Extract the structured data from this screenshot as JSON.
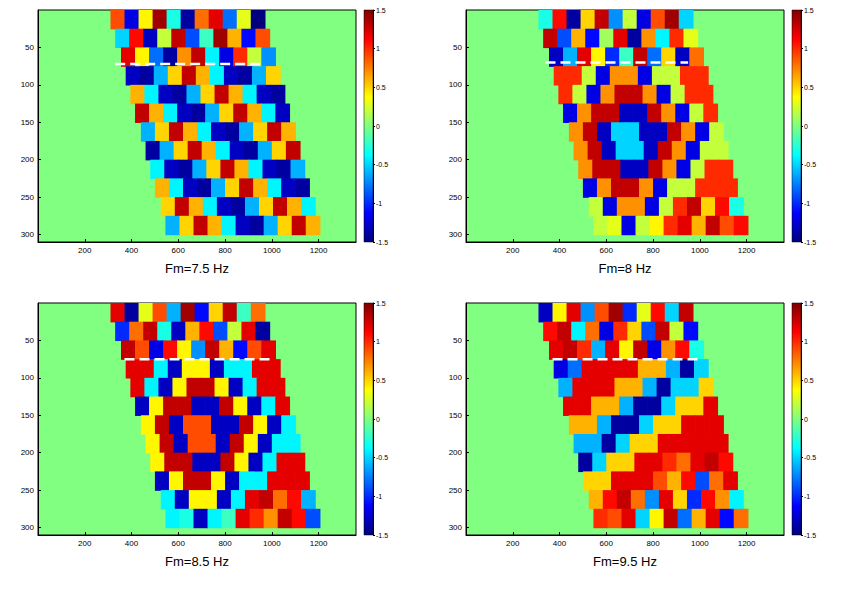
{
  "chart_data": [
    {
      "type": "heatmap",
      "title": "Fm=7.5 Hz",
      "xlim": [
        0,
        1360
      ],
      "ylim": [
        0,
        310
      ],
      "xticks": [
        200,
        400,
        600,
        800,
        1000,
        1200
      ],
      "yticks": [
        50,
        100,
        150,
        200,
        250,
        300
      ],
      "grid": false,
      "cell_width": 60,
      "cell_height": 25,
      "rows": [
        {
          "y": 12.5,
          "x": 340,
          "values": [
            0.9,
            -1.2,
            0.4,
            1.4,
            -0.3,
            -1.4,
            0.8,
            1.2,
            -0.8,
            0.3,
            -1.5
          ]
        },
        {
          "y": 37.5,
          "x": 360,
          "values": [
            -0.5,
            1.1,
            -1.3,
            0.2,
            1.3,
            -0.9,
            -0.2,
            1.4,
            0.6,
            -1.1,
            0.9
          ]
        },
        {
          "y": 62.5,
          "x": 385,
          "values": [
            1.2,
            0.4,
            -0.8,
            -1.4,
            0.7,
            1.3,
            -0.4,
            -1.2,
            1.0,
            0.2,
            -0.7
          ]
        },
        {
          "y": 87.5,
          "x": 405,
          "values": [
            -1.3,
            -1.4,
            -0.6,
            0.5,
            1.3,
            0.6,
            -0.4,
            -1.3,
            -1.4,
            -0.6,
            0.5
          ]
        },
        {
          "y": 112.5,
          "x": 425,
          "values": [
            0.6,
            -0.4,
            -1.3,
            -1.4,
            -0.6,
            0.5,
            1.3,
            0.6,
            -0.4,
            -1.3,
            -1.4
          ]
        },
        {
          "y": 137.5,
          "x": 445,
          "values": [
            1.3,
            0.6,
            -0.4,
            -1.3,
            -1.4,
            -0.6,
            0.5,
            1.3,
            0.6,
            -0.4,
            -1.3
          ]
        },
        {
          "y": 162.5,
          "x": 470,
          "values": [
            -0.6,
            0.5,
            1.3,
            0.6,
            -0.4,
            -1.3,
            -1.4,
            -0.6,
            0.5,
            1.3,
            0.6
          ]
        },
        {
          "y": 187.5,
          "x": 490,
          "values": [
            -1.4,
            -0.6,
            0.5,
            1.3,
            0.6,
            -0.4,
            -1.3,
            -1.4,
            -0.6,
            0.5,
            1.3
          ]
        },
        {
          "y": 212.5,
          "x": 510,
          "values": [
            -0.4,
            -1.3,
            -1.4,
            -0.6,
            0.5,
            1.3,
            0.6,
            -0.4,
            -1.3,
            -1.4,
            -0.6
          ]
        },
        {
          "y": 237.5,
          "x": 530,
          "values": [
            0.6,
            -0.4,
            -1.3,
            -1.4,
            -0.6,
            0.5,
            1.3,
            0.6,
            -0.4,
            -1.3,
            -1.4
          ]
        },
        {
          "y": 262.5,
          "x": 555,
          "values": [
            0.5,
            1.3,
            0.6,
            -0.4,
            -1.3,
            -1.4,
            -0.6,
            0.5,
            1.3,
            0.6,
            -0.4
          ]
        },
        {
          "y": 287.5,
          "x": 575,
          "values": [
            -0.6,
            0.5,
            1.3,
            0.6,
            -0.4,
            -1.3,
            -1.4,
            -0.6,
            0.5,
            1.3,
            0.6
          ]
        }
      ],
      "colorbar": {
        "range": [
          -1.5,
          1.5
        ],
        "ticks": [
          -1.5,
          -1,
          -0.5,
          0,
          0.5,
          1,
          1.5
        ]
      },
      "dashed_line": {
        "x": [
          330,
          960
        ],
        "y": [
          72,
          72
        ]
      },
      "line_style": "dashed"
    },
    {
      "type": "heatmap",
      "title": "Fm=8 Hz",
      "xlim": [
        0,
        1360
      ],
      "ylim": [
        0,
        310
      ],
      "xticks": [
        200,
        400,
        600,
        800,
        1000,
        1200
      ],
      "yticks": [
        50,
        100,
        150,
        200,
        250,
        300
      ],
      "grid": false,
      "cell_width": 60,
      "cell_height": 25,
      "rows": [
        {
          "y": 12.5,
          "x": 340,
          "values": [
            -0.3,
            1.1,
            -1.4,
            0.5,
            1.3,
            -0.7,
            0.2,
            -1.2,
            0.9,
            1.4,
            -0.5
          ]
        },
        {
          "y": 37.5,
          "x": 360,
          "values": [
            1.3,
            -0.9,
            0.6,
            -1.1,
            0.1,
            1.2,
            -1.4,
            0.7,
            -0.4,
            1.0,
            0.3
          ]
        },
        {
          "y": 62.5,
          "x": 385,
          "values": [
            -1.3,
            -0.6,
            1.2,
            0.4,
            -1.0,
            -0.2,
            1.3,
            -0.8,
            0.5,
            -1.3,
            0.8
          ]
        },
        {
          "y": 87.5,
          "x": 405,
          "values": [
            1.0,
            1.0,
            0.2,
            -1.2,
            0.7,
            0.7,
            -1.2,
            0.2,
            0.2,
            1.0,
            1.0
          ]
        },
        {
          "y": 112.5,
          "x": 425,
          "values": [
            1.0,
            0.2,
            -1.2,
            0.7,
            1.3,
            1.3,
            0.7,
            -1.2,
            0.2,
            1.0,
            1.0
          ]
        },
        {
          "y": 137.5,
          "x": 445,
          "values": [
            -1.2,
            0.7,
            1.3,
            1.3,
            -1.3,
            -1.3,
            1.3,
            0.7,
            -1.2,
            0.2,
            1.0
          ]
        },
        {
          "y": 162.5,
          "x": 470,
          "values": [
            0.7,
            1.3,
            -1.3,
            -0.5,
            -0.5,
            -1.3,
            -1.3,
            1.3,
            0.7,
            -1.2,
            0.2
          ]
        },
        {
          "y": 187.5,
          "x": 490,
          "values": [
            0.7,
            1.3,
            -1.3,
            -0.5,
            -0.5,
            -1.3,
            1.3,
            0.7,
            -1.2,
            0.2,
            0.2
          ]
        },
        {
          "y": 212.5,
          "x": 510,
          "values": [
            0.7,
            1.3,
            1.3,
            -1.3,
            -1.3,
            1.3,
            0.7,
            -1.2,
            0.2,
            1.0,
            1.0
          ]
        },
        {
          "y": 237.5,
          "x": 530,
          "values": [
            -1.2,
            0.7,
            1.3,
            1.3,
            0.7,
            -1.2,
            0.2,
            0.2,
            1.0,
            1.0,
            1.0
          ]
        },
        {
          "y": 262.5,
          "x": 555,
          "values": [
            0.2,
            -1.2,
            0.7,
            0.7,
            -1.2,
            0.2,
            1.0,
            1.3,
            0.5,
            1.1,
            -0.3
          ]
        },
        {
          "y": 287.5,
          "x": 575,
          "values": [
            0.2,
            0.3,
            -1.2,
            0.2,
            0.4,
            1.0,
            1.2,
            0.6,
            1.3,
            0.9,
            1.1
          ]
        }
      ],
      "colorbar": {
        "range": [
          -1.5,
          1.5
        ],
        "ticks": [
          -1.5,
          -1,
          -0.5,
          0,
          0.5,
          1,
          1.5
        ]
      },
      "dashed_line": {
        "x": [
          340,
          950
        ],
        "y": [
          70,
          70
        ]
      },
      "line_style": "dashed"
    },
    {
      "type": "heatmap",
      "title": "Fm=8.5 Hz",
      "xlim": [
        0,
        1360
      ],
      "ylim": [
        0,
        310
      ],
      "xticks": [
        200,
        400,
        600,
        800,
        1000,
        1200
      ],
      "yticks": [
        50,
        100,
        150,
        200,
        250,
        300
      ],
      "grid": false,
      "cell_width": 60,
      "cell_height": 25,
      "rows": [
        {
          "y": 12.5,
          "x": 340,
          "values": [
            1.2,
            -1.4,
            0.3,
            0.9,
            -0.6,
            1.4,
            -1.1,
            0.5,
            1.3,
            -0.2,
            0.8
          ]
        },
        {
          "y": 37.5,
          "x": 360,
          "values": [
            -1.0,
            0.8,
            1.3,
            -0.3,
            -1.3,
            0.6,
            1.1,
            -0.9,
            0.2,
            1.2,
            -1.4
          ]
        },
        {
          "y": 62.5,
          "x": 385,
          "values": [
            1.3,
            0.9,
            -1.2,
            1.1,
            0.4,
            -0.7,
            1.3,
            0.6,
            -1.1,
            0.9,
            1.2
          ]
        },
        {
          "y": 87.5,
          "x": 405,
          "values": [
            1.2,
            1.2,
            -0.4,
            -1.3,
            0.4,
            0.4,
            -1.3,
            -0.4,
            -0.4,
            1.2,
            1.2
          ]
        },
        {
          "y": 112.5,
          "x": 425,
          "values": [
            1.2,
            -0.4,
            -1.3,
            0.4,
            1.3,
            1.3,
            0.4,
            -1.3,
            -0.4,
            1.2,
            1.2
          ]
        },
        {
          "y": 137.5,
          "x": 445,
          "values": [
            -1.3,
            0.4,
            1.3,
            1.3,
            -1.3,
            -1.3,
            1.3,
            0.4,
            -1.3,
            -0.4,
            1.2
          ]
        },
        {
          "y": 162.5,
          "x": 470,
          "values": [
            0.4,
            1.3,
            -1.3,
            0.9,
            0.9,
            -1.3,
            -1.3,
            1.3,
            0.4,
            -1.3,
            -0.4
          ]
        },
        {
          "y": 187.5,
          "x": 490,
          "values": [
            0.4,
            1.3,
            -1.3,
            0.9,
            0.9,
            -1.3,
            1.3,
            0.4,
            -1.3,
            -0.4,
            -0.4
          ]
        },
        {
          "y": 212.5,
          "x": 510,
          "values": [
            0.4,
            1.3,
            1.3,
            -1.3,
            -1.3,
            1.3,
            0.4,
            -1.3,
            -0.4,
            1.2,
            1.2
          ]
        },
        {
          "y": 237.5,
          "x": 530,
          "values": [
            -1.3,
            0.4,
            1.3,
            1.3,
            0.4,
            -1.3,
            -0.4,
            -0.4,
            1.2,
            1.2,
            1.2
          ]
        },
        {
          "y": 262.5,
          "x": 555,
          "values": [
            -0.4,
            -1.3,
            0.4,
            0.4,
            -1.3,
            -0.4,
            1.2,
            1.3,
            0.8,
            1.1,
            -0.6
          ]
        },
        {
          "y": 287.5,
          "x": 575,
          "values": [
            -0.4,
            -0.3,
            -1.3,
            -0.4,
            -0.2,
            1.2,
            1.0,
            0.7,
            1.3,
            1.1,
            -0.9
          ]
        }
      ],
      "colorbar": {
        "range": [
          -1.5,
          1.5
        ],
        "ticks": [
          -1.5,
          -1,
          -0.5,
          0,
          0.5,
          1,
          1.5
        ]
      },
      "dashed_line": {
        "x": [
          370,
          1000
        ],
        "y": [
          75,
          75
        ]
      },
      "line_style": "dashed"
    },
    {
      "type": "heatmap",
      "title": "Fm=9.5 Hz",
      "xlim": [
        0,
        1360
      ],
      "ylim": [
        0,
        310
      ],
      "xticks": [
        200,
        400,
        600,
        800,
        1000,
        1200
      ],
      "yticks": [
        50,
        100,
        150,
        200,
        250,
        300
      ],
      "grid": false,
      "cell_width": 60,
      "cell_height": 25,
      "rows": [
        {
          "y": 12.5,
          "x": 340,
          "values": [
            -1.3,
            0.4,
            1.2,
            -0.7,
            0.9,
            1.4,
            -1.0,
            0.3,
            1.1,
            -0.5,
            1.3
          ]
        },
        {
          "y": 37.5,
          "x": 360,
          "values": [
            1.1,
            1.3,
            -0.4,
            0.8,
            -1.2,
            1.0,
            0.5,
            -0.9,
            1.3,
            0.2,
            -1.1
          ]
        },
        {
          "y": 62.5,
          "x": 385,
          "values": [
            1.2,
            1.3,
            1.0,
            -0.6,
            1.2,
            0.4,
            1.3,
            -1.2,
            0.7,
            1.1,
            -0.3
          ]
        },
        {
          "y": 87.5,
          "x": 405,
          "values": [
            -1.2,
            -0.8,
            1.2,
            1.2,
            1.2,
            1.2,
            0.6,
            0.6,
            -0.6,
            -1.4,
            -0.5
          ]
        },
        {
          "y": 112.5,
          "x": 425,
          "values": [
            -0.6,
            1.2,
            1.2,
            1.2,
            0.6,
            0.6,
            -0.6,
            -1.4,
            -0.5,
            -0.5,
            0.5
          ]
        },
        {
          "y": 137.5,
          "x": 445,
          "values": [
            1.2,
            1.2,
            0.6,
            0.6,
            -0.6,
            -1.4,
            -1.4,
            -0.5,
            0.5,
            0.5,
            1.2
          ]
        },
        {
          "y": 162.5,
          "x": 470,
          "values": [
            0.6,
            0.6,
            -0.6,
            -1.4,
            -1.4,
            -0.5,
            0.5,
            0.5,
            1.2,
            1.2,
            1.2
          ]
        },
        {
          "y": 187.5,
          "x": 490,
          "values": [
            -0.6,
            -0.6,
            -1.4,
            -0.5,
            0.5,
            0.5,
            1.2,
            1.2,
            1.2,
            1.2,
            1.2
          ]
        },
        {
          "y": 212.5,
          "x": 510,
          "values": [
            -1.4,
            -0.5,
            0.5,
            0.5,
            1.2,
            1.2,
            1.0,
            0.8,
            1.2,
            1.3,
            1.1
          ]
        },
        {
          "y": 237.5,
          "x": 530,
          "values": [
            0.5,
            0.5,
            1.2,
            1.2,
            1.2,
            0.9,
            0.6,
            1.1,
            -0.9,
            0.8,
            1.2
          ]
        },
        {
          "y": 262.5,
          "x": 555,
          "values": [
            0.6,
            1.1,
            1.3,
            0.8,
            -0.7,
            1.2,
            0.5,
            -1.0,
            1.1,
            0.7,
            -0.4
          ]
        },
        {
          "y": 287.5,
          "x": 575,
          "values": [
            1.0,
            0.9,
            1.2,
            -0.5,
            0.4,
            1.3,
            -0.8,
            0.6,
            1.2,
            -1.1,
            0.8
          ]
        }
      ],
      "colorbar": {
        "range": [
          -1.5,
          1.5
        ],
        "ticks": [
          -1.5,
          -1,
          -0.5,
          0,
          0.5,
          1,
          1.5
        ]
      },
      "dashed_line": {
        "x": [
          370,
          1000
        ],
        "y": [
          75,
          75
        ]
      },
      "line_style": "dashed"
    }
  ]
}
